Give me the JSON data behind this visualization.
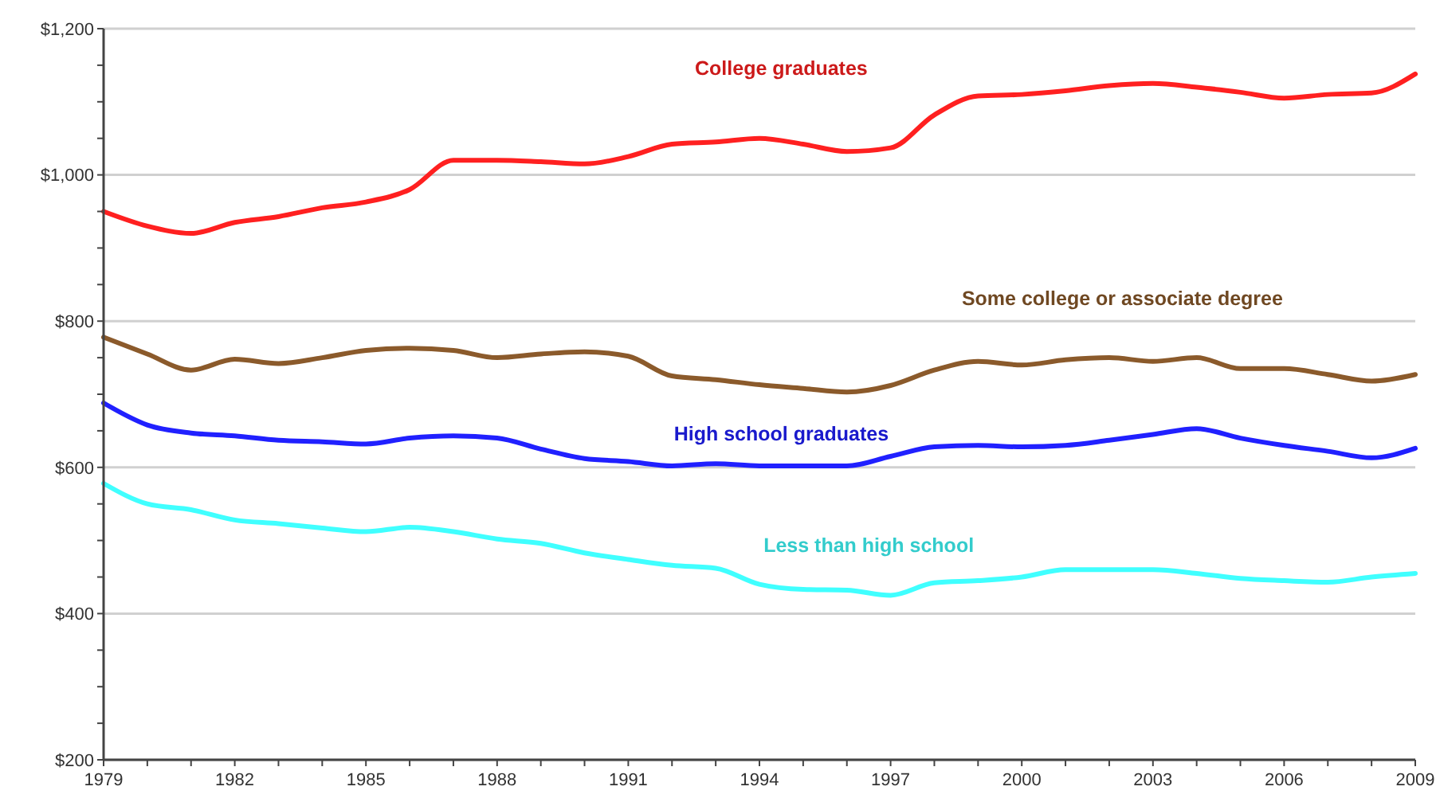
{
  "chart_data": {
    "type": "line",
    "x": [
      1979,
      1980,
      1981,
      1982,
      1983,
      1984,
      1985,
      1986,
      1987,
      1988,
      1989,
      1990,
      1991,
      1992,
      1993,
      1994,
      1995,
      1996,
      1997,
      1998,
      1999,
      2000,
      2001,
      2002,
      2003,
      2004,
      2005,
      2006,
      2007,
      2008,
      2009
    ],
    "series": [
      {
        "name": "College graduates",
        "color": "#ff2020",
        "values": [
          950,
          930,
          920,
          935,
          943,
          955,
          963,
          980,
          1020,
          1020,
          1018,
          1015,
          1025,
          1042,
          1045,
          1050,
          1042,
          1032,
          1037,
          1082,
          1108,
          1110,
          1115,
          1122,
          1125,
          1120,
          1113,
          1105,
          1110,
          1112,
          1138
        ]
      },
      {
        "name": "Some college or associate degree",
        "color": "#8b5a2b",
        "values": [
          778,
          755,
          733,
          748,
          742,
          750,
          760,
          763,
          760,
          750,
          755,
          758,
          752,
          725,
          720,
          713,
          708,
          703,
          712,
          733,
          745,
          740,
          747,
          750,
          745,
          750,
          735,
          735,
          727,
          718,
          727
        ]
      },
      {
        "name": "High school graduates",
        "color": "#2020ff",
        "values": [
          688,
          658,
          647,
          643,
          637,
          635,
          632,
          640,
          643,
          640,
          625,
          612,
          608,
          602,
          605,
          602,
          602,
          602,
          615,
          628,
          630,
          628,
          630,
          637,
          645,
          653,
          640,
          630,
          622,
          613,
          626
        ]
      },
      {
        "name": "Less than high school",
        "color": "#40ffff",
        "values": [
          578,
          550,
          542,
          528,
          523,
          517,
          512,
          518,
          512,
          502,
          496,
          483,
          474,
          466,
          462,
          440,
          433,
          432,
          425,
          442,
          445,
          450,
          460,
          460,
          460,
          455,
          448,
          445,
          443,
          450,
          455
        ]
      }
    ],
    "xlim": [
      1979,
      2009
    ],
    "xticks": [
      1979,
      {
        "value": 1980,
        "label": null
      },
      {
        "value": 1981,
        "label": null
      },
      1982,
      {
        "value": 1983,
        "label": null
      },
      {
        "value": 1984,
        "label": null
      },
      1985,
      {
        "value": 1986,
        "label": null
      },
      {
        "value": 1987,
        "label": null
      },
      1988,
      {
        "value": 1989,
        "label": null
      },
      {
        "value": 1990,
        "label": null
      },
      1991,
      {
        "value": 1992,
        "label": null
      },
      {
        "value": 1993,
        "label": null
      },
      1994,
      {
        "value": 1995,
        "label": null
      },
      {
        "value": 1996,
        "label": null
      },
      1997,
      {
        "value": 1998,
        "label": null
      },
      {
        "value": 1999,
        "label": null
      },
      2000,
      {
        "value": 2001,
        "label": null
      },
      {
        "value": 2002,
        "label": null
      },
      2003,
      {
        "value": 2004,
        "label": null
      },
      {
        "value": 2005,
        "label": null
      },
      2006,
      {
        "value": 2007,
        "label": null
      },
      {
        "value": 2008,
        "label": null
      },
      2009
    ],
    "ylim": [
      200,
      1200
    ],
    "yticks": [
      {
        "value": 200,
        "label": "$200"
      },
      {
        "value": 250,
        "label": null
      },
      {
        "value": 300,
        "label": null
      },
      {
        "value": 350,
        "label": null
      },
      {
        "value": 400,
        "label": "$400"
      },
      {
        "value": 450,
        "label": null
      },
      {
        "value": 500,
        "label": null
      },
      {
        "value": 550,
        "label": null
      },
      {
        "value": 600,
        "label": "$600"
      },
      {
        "value": 650,
        "label": null
      },
      {
        "value": 700,
        "label": null
      },
      {
        "value": 750,
        "label": null
      },
      {
        "value": 800,
        "label": "$800"
      },
      {
        "value": 850,
        "label": null
      },
      {
        "value": 900,
        "label": null
      },
      {
        "value": 950,
        "label": null
      },
      {
        "value": 1000,
        "label": "$1,000"
      },
      {
        "value": 1050,
        "label": null
      },
      {
        "value": 1100,
        "label": null
      },
      {
        "value": 1150,
        "label": null
      },
      {
        "value": 1200,
        "label": "$1,200"
      }
    ],
    "grid": "y",
    "legend": false,
    "marker": "none",
    "line_style": "solid"
  }
}
